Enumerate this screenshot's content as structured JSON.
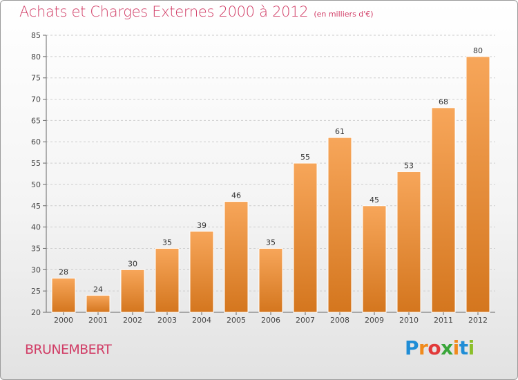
{
  "chart_data": {
    "type": "bar",
    "title": "Achats et Charges Externes 2000 à 2012",
    "unit": "(en milliers d'€)",
    "categories": [
      "2000",
      "2001",
      "2002",
      "2003",
      "2004",
      "2005",
      "2006",
      "2007",
      "2008",
      "2009",
      "2010",
      "2011",
      "2012"
    ],
    "values": [
      28,
      24,
      30,
      35,
      39,
      46,
      35,
      55,
      61,
      45,
      53,
      68,
      80
    ],
    "ylim": [
      20,
      85
    ],
    "yticks": [
      20,
      25,
      30,
      35,
      40,
      45,
      50,
      55,
      60,
      65,
      70,
      75,
      80,
      85
    ],
    "grid": true,
    "bar_color_top": "#f7a65a",
    "bar_color_bottom": "#d4761e",
    "xlabel": "",
    "ylabel": ""
  },
  "commune": "BRUNEMBERT",
  "logo": {
    "letters": [
      "P",
      "r",
      "o",
      "x",
      "i",
      "t",
      "i"
    ],
    "colors": [
      "#1f8dd6",
      "#f08a1c",
      "#e23a3a",
      "#3aa63a",
      "#f08a1c",
      "#1f8dd6",
      "#8bbf2a"
    ]
  },
  "colors": {
    "accent": "#d13d66",
    "grid": "#cccccc"
  }
}
